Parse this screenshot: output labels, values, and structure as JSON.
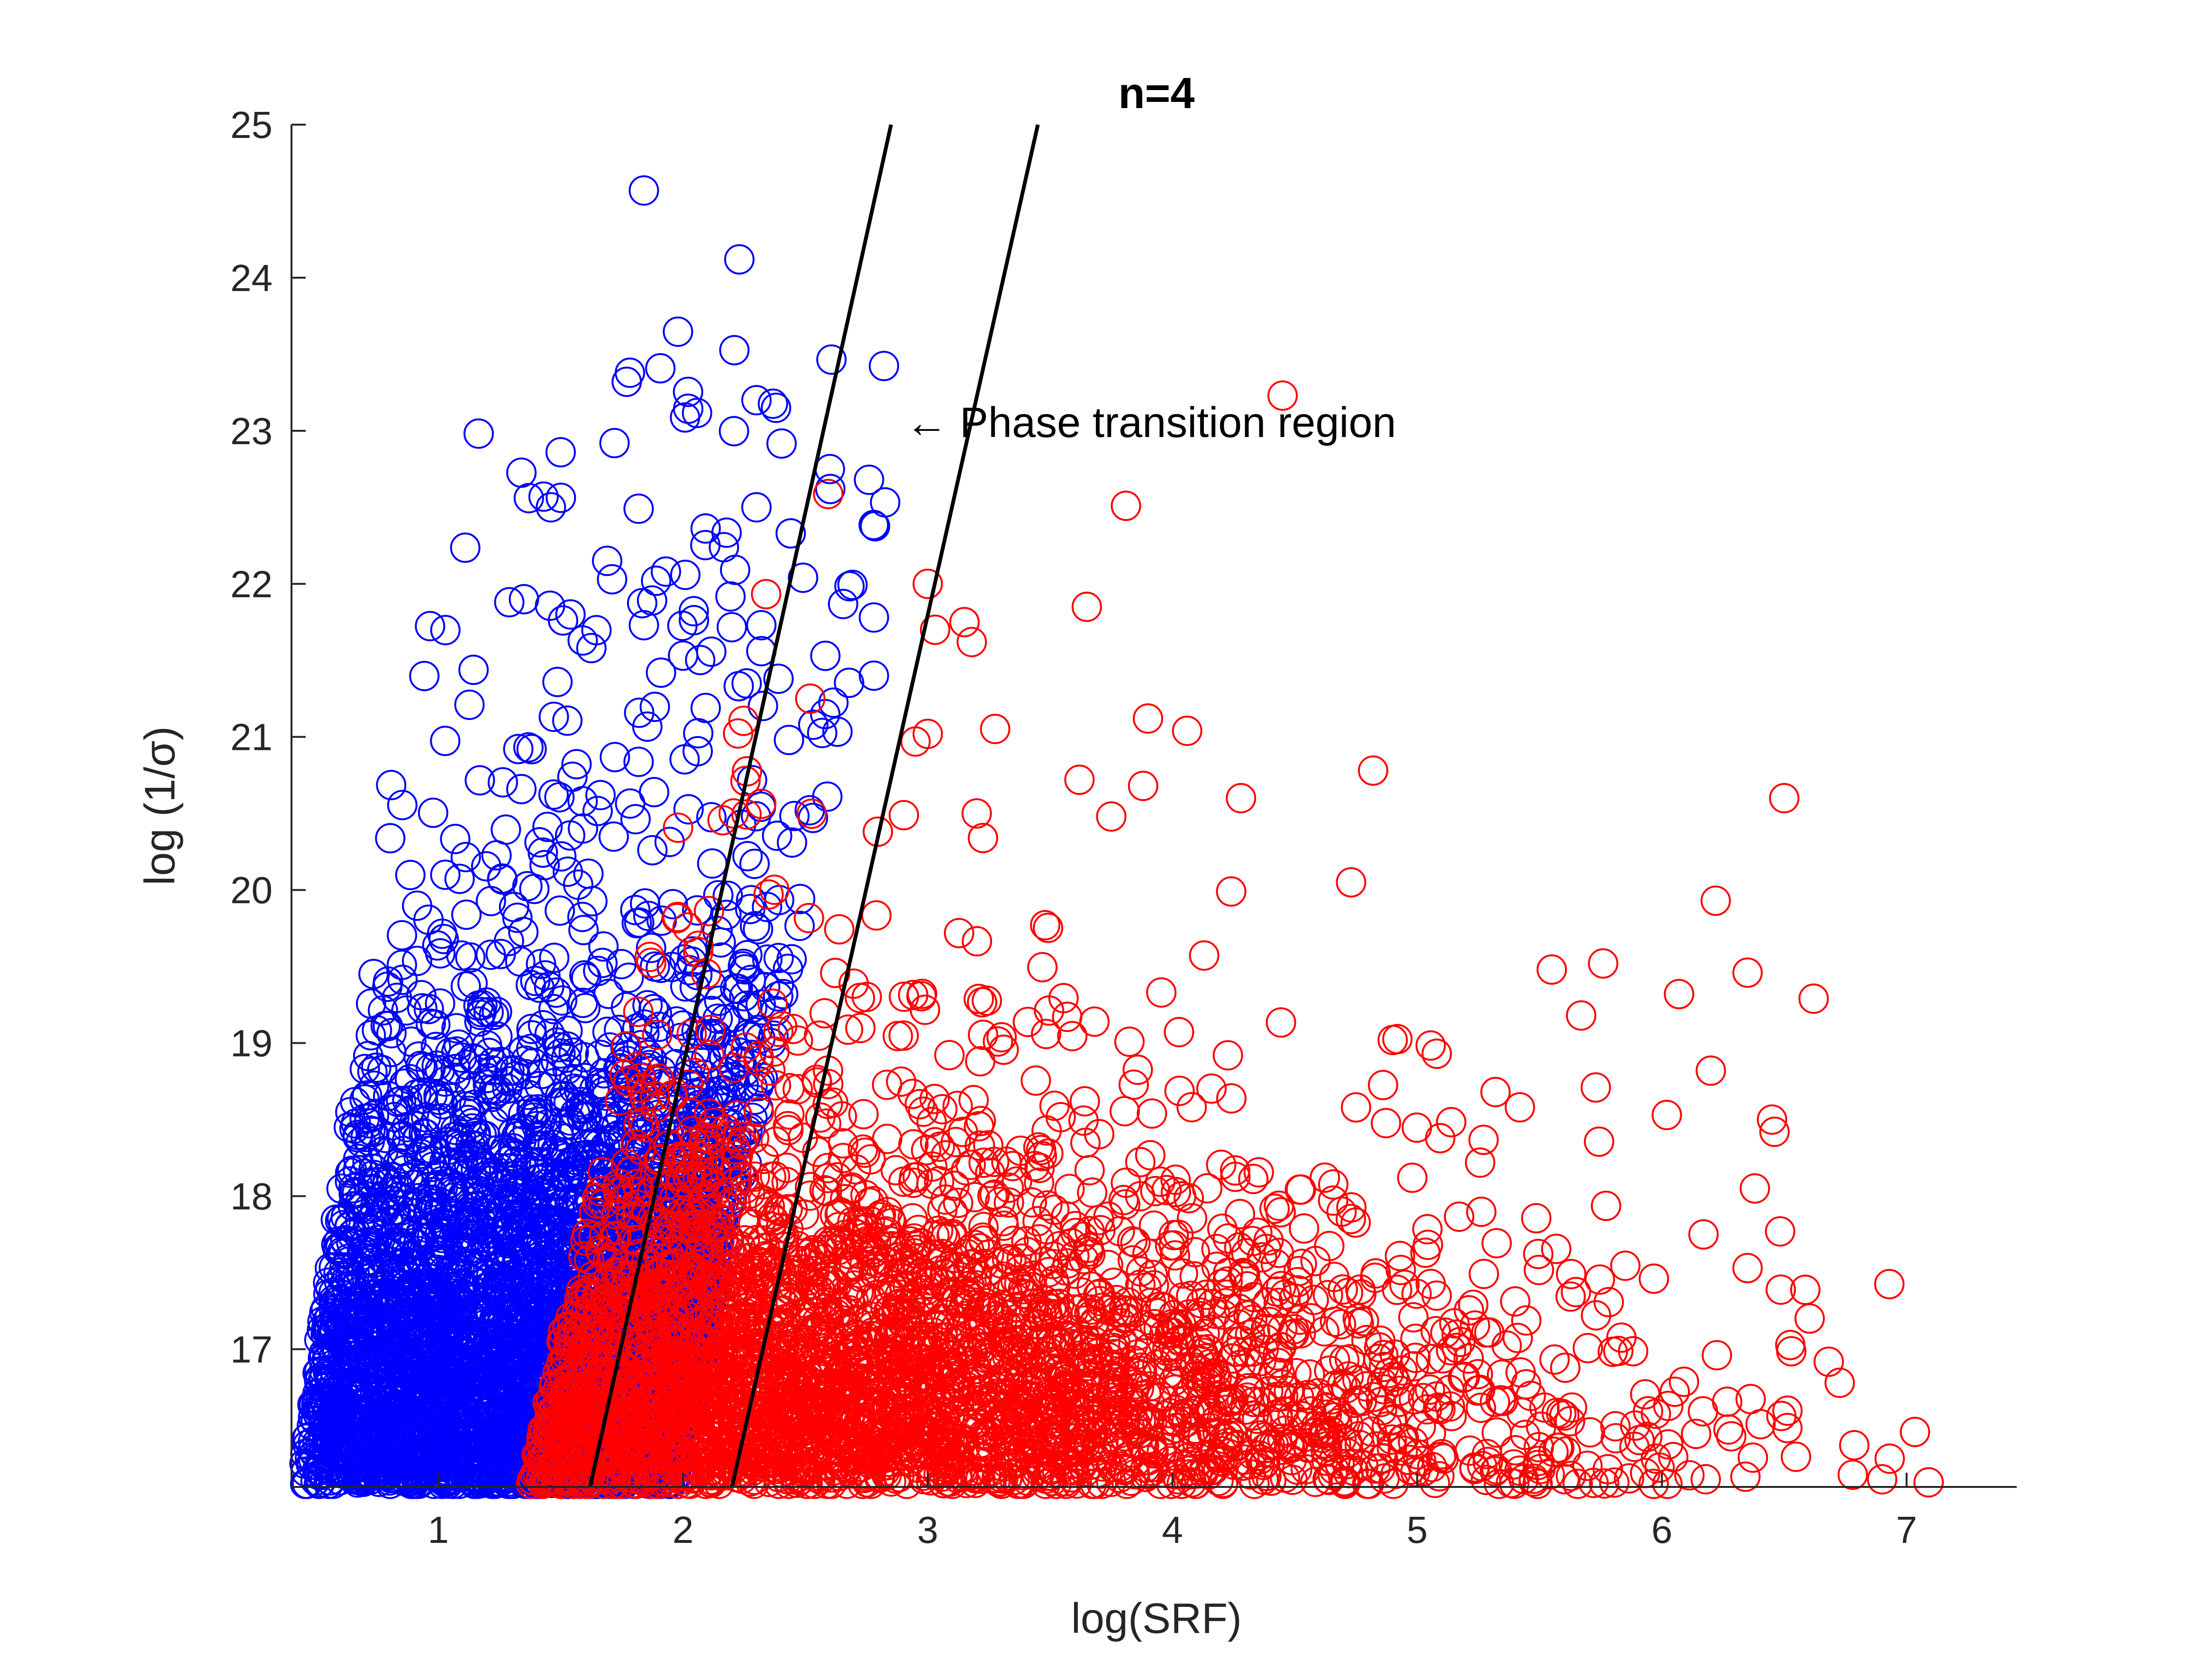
{
  "chart_data": {
    "type": "scatter",
    "title": "n=4",
    "xlabel": "log(SRF)",
    "ylabel": "log (1/σ)",
    "xlim": [
      0.4,
      7.45
    ],
    "ylim": [
      16.1,
      25
    ],
    "xticks": [
      "1",
      "2",
      "3",
      "4",
      "5",
      "6",
      "7"
    ],
    "yticks": [
      "17",
      "18",
      "19",
      "20",
      "21",
      "22",
      "23",
      "24",
      "25"
    ],
    "annotation": {
      "text": "← Phase transition region",
      "x": 2.85,
      "y": 23.0
    },
    "boundary_lines": [
      {
        "x": [
          1.62,
          2.85
        ],
        "y": [
          16.1,
          25
        ]
      },
      {
        "x": [
          2.2,
          3.45
        ],
        "y": [
          16.1,
          25
        ]
      }
    ],
    "series": [
      {
        "color": "#0000ff",
        "marker": "circle-open",
        "points_sample": [
          [
            1.84,
            24.57
          ],
          [
            2.23,
            24.12
          ],
          [
            1.77,
            23.32
          ],
          [
            2.3,
            23.2
          ],
          [
            2.38,
            23.15
          ],
          [
            1.72,
            22.92
          ],
          [
            1.5,
            22.86
          ],
          [
            2.6,
            22.75
          ],
          [
            2.76,
            22.68
          ],
          [
            1.37,
            22.56
          ],
          [
            1.43,
            22.57
          ],
          [
            1.46,
            22.5
          ],
          [
            2.3,
            22.5
          ],
          [
            2.44,
            22.33
          ],
          [
            1.69,
            22.15
          ],
          [
            1.93,
            22.08
          ],
          [
            1.89,
            22.02
          ],
          [
            1.71,
            22.03
          ],
          [
            1.35,
            21.9
          ],
          [
            1.29,
            21.88
          ],
          [
            1.54,
            21.8
          ],
          [
            2.78,
            21.78
          ],
          [
            1.84,
            21.73
          ],
          [
            2.32,
            21.73
          ],
          [
            1.59,
            21.63
          ],
          [
            2.32,
            21.56
          ],
          [
            1.91,
            21.42
          ],
          [
            2.78,
            21.4
          ],
          [
            2.39,
            21.38
          ],
          [
            2.26,
            21.35
          ]
        ],
        "region": {
          "x_range": [
            0.45,
            2.85
          ],
          "y_range": [
            16.1,
            24.6
          ],
          "density": "very dense near x 0.5-1.5, y 16.1-18.5"
        }
      },
      {
        "color": "#ff0000",
        "marker": "circle-open",
        "points_sample": [
          [
            4.45,
            23.23
          ],
          [
            3.81,
            22.51
          ],
          [
            3.0,
            22.0
          ],
          [
            3.15,
            21.75
          ],
          [
            3.03,
            21.7
          ],
          [
            3.65,
            21.85
          ],
          [
            3.18,
            21.62
          ],
          [
            2.52,
            21.25
          ],
          [
            3.9,
            21.12
          ],
          [
            4.06,
            21.04
          ],
          [
            2.95,
            20.97
          ],
          [
            3.0,
            21.02
          ],
          [
            4.82,
            20.78
          ],
          [
            6.5,
            20.6
          ],
          [
            3.62,
            20.72
          ],
          [
            3.88,
            20.68
          ],
          [
            4.28,
            20.6
          ],
          [
            3.2,
            20.5
          ],
          [
            3.75,
            20.48
          ],
          [
            4.73,
            20.05
          ],
          [
            4.24,
            19.99
          ],
          [
            6.22,
            19.93
          ],
          [
            3.48,
            19.77
          ],
          [
            5.55,
            19.48
          ],
          [
            5.76,
            19.52
          ],
          [
            6.35,
            19.46
          ],
          [
            6.07,
            19.32
          ],
          [
            6.62,
            19.29
          ],
          [
            5.67,
            19.18
          ],
          [
            6.2,
            18.82
          ],
          [
            5.73,
            18.71
          ],
          [
            6.02,
            18.53
          ],
          [
            6.45,
            18.5
          ],
          [
            6.46,
            18.42
          ],
          [
            6.38,
            18.05
          ],
          [
            6.17,
            17.75
          ],
          [
            6.35,
            17.53
          ],
          [
            7.09,
            16.13
          ],
          [
            6.9,
            16.15
          ],
          [
            6.78,
            16.18
          ],
          [
            5.32,
            18.68
          ],
          [
            5.08,
            18.93
          ],
          [
            4.9,
            19.02
          ],
          [
            4.75,
            18.58
          ],
          [
            4.98,
            18.12
          ]
        ],
        "region": {
          "x_range": [
            1.6,
            7.1
          ],
          "y_range": [
            16.1,
            23.3
          ],
          "density": "very dense near x 2.2-3.5, y 16.1-18.5"
        }
      }
    ]
  }
}
